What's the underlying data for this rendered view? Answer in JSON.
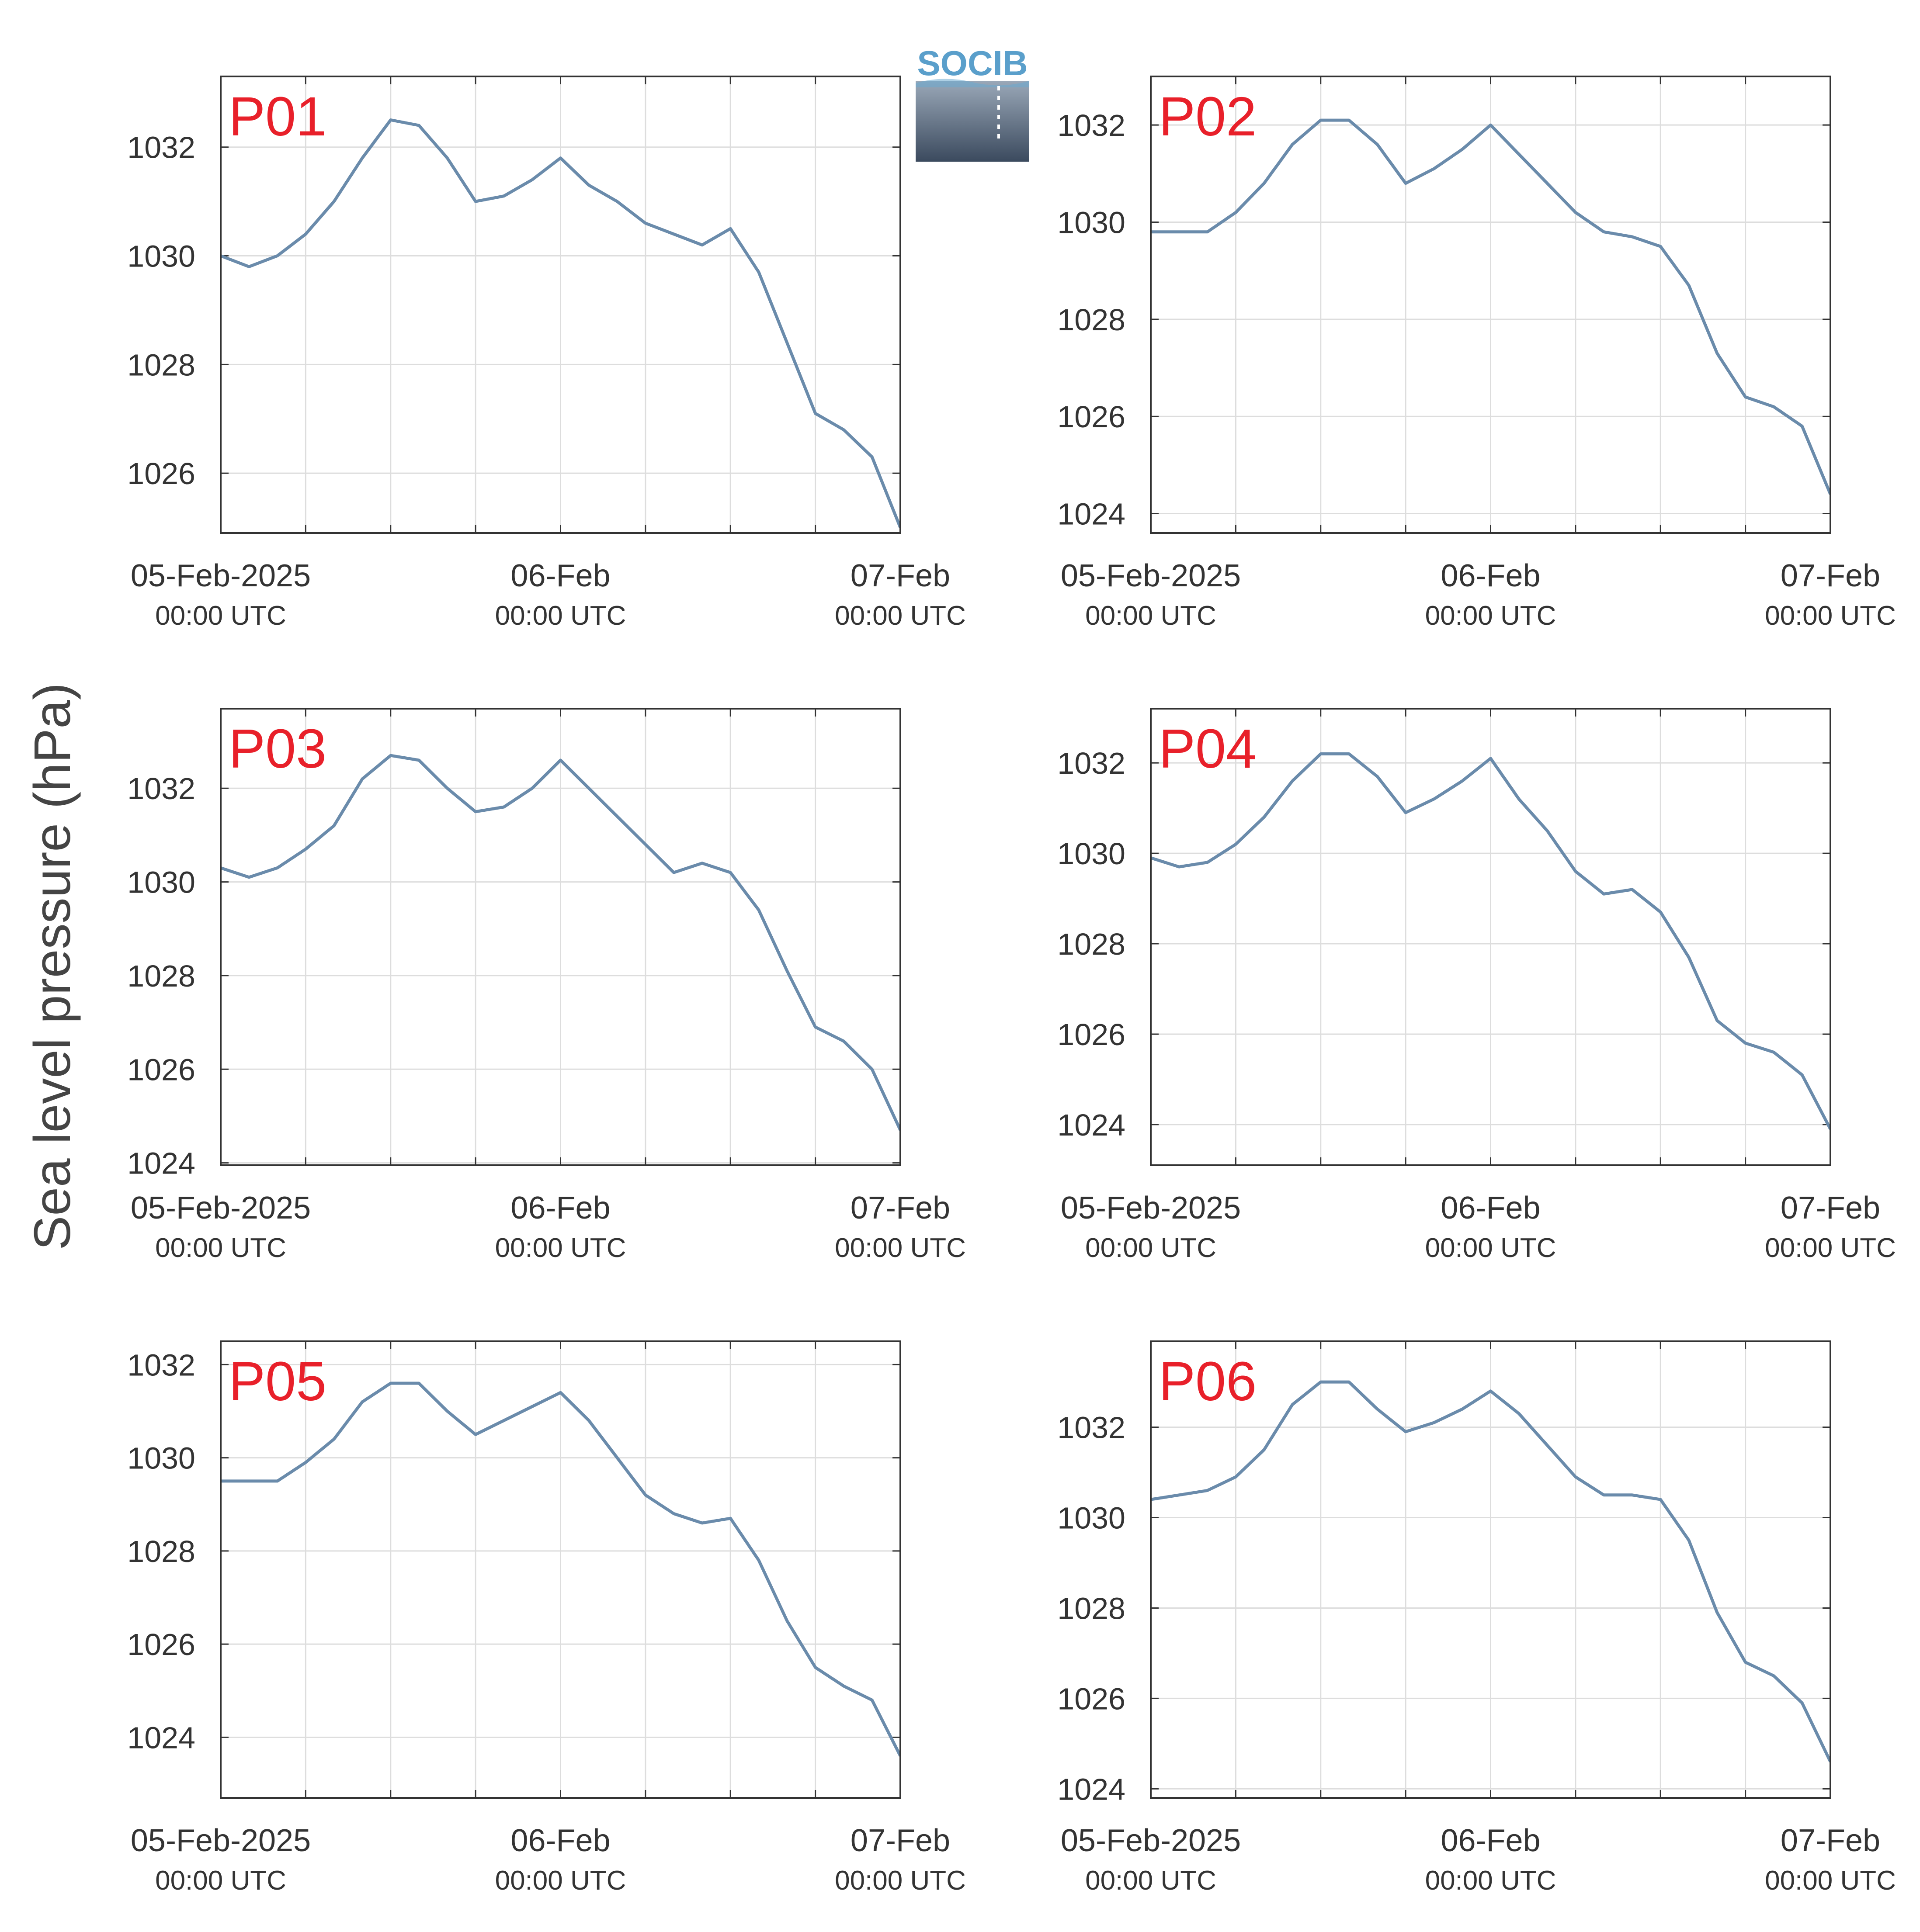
{
  "figure": {
    "ylabel": "Sea level pressure (hPa)",
    "logo_text": "SOCIB"
  },
  "colors": {
    "line": "#6a8bab",
    "panel_label": "#e8202a",
    "grid": "#dddddd",
    "axis": "#333333",
    "logo_text": "#5a9fcb",
    "logo_top": "#9aa8b8",
    "logo_bottom": "#3b4a5e"
  },
  "chart_data": [
    {
      "type": "line",
      "label": "P01",
      "x_range": [
        "2025-02-05 00:00",
        "2025-02-07 00:00"
      ],
      "ylim": [
        1024.9,
        1033.3
      ],
      "yticks": [
        1026,
        1028,
        1030,
        1032
      ],
      "xticks": [
        {
          "label": "05-Feb-2025",
          "sub": "00:00 UTC"
        },
        {
          "label": "06-Feb",
          "sub": "00:00 UTC"
        },
        {
          "label": "07-Feb",
          "sub": "00:00 UTC"
        }
      ],
      "grid": true,
      "x_hours": [
        0,
        2,
        4,
        6,
        8,
        10,
        12,
        14,
        16,
        18,
        20,
        22,
        24,
        26,
        28,
        30,
        32,
        34,
        36,
        38,
        40,
        42,
        44,
        46,
        48
      ],
      "values": [
        1030.0,
        1029.8,
        1030.0,
        1030.4,
        1031.0,
        1031.8,
        1032.5,
        1032.4,
        1031.8,
        1031.0,
        1031.1,
        1031.4,
        1031.8,
        1031.3,
        1031.0,
        1030.6,
        1030.4,
        1030.2,
        1030.5,
        1029.7,
        1028.4,
        1027.1,
        1026.8,
        1026.3,
        1025.0
      ]
    },
    {
      "type": "line",
      "label": "P02",
      "x_range": [
        "2025-02-05 00:00",
        "2025-02-07 00:00"
      ],
      "ylim": [
        1023.6,
        1033.0
      ],
      "yticks": [
        1024,
        1026,
        1028,
        1030,
        1032
      ],
      "xticks": [
        {
          "label": "05-Feb-2025",
          "sub": "00:00 UTC"
        },
        {
          "label": "06-Feb",
          "sub": "00:00 UTC"
        },
        {
          "label": "07-Feb",
          "sub": "00:00 UTC"
        }
      ],
      "grid": true,
      "x_hours": [
        0,
        2,
        4,
        6,
        8,
        10,
        12,
        14,
        16,
        18,
        20,
        22,
        24,
        26,
        28,
        30,
        32,
        34,
        36,
        38,
        40,
        42,
        44,
        46,
        48
      ],
      "values": [
        1029.8,
        1029.8,
        1029.8,
        1030.2,
        1030.8,
        1031.6,
        1032.1,
        1032.1,
        1031.6,
        1030.8,
        1031.1,
        1031.5,
        1032.0,
        1031.4,
        1030.8,
        1030.2,
        1029.8,
        1029.7,
        1029.5,
        1028.7,
        1027.3,
        1026.4,
        1026.2,
        1025.8,
        1024.4
      ]
    },
    {
      "type": "line",
      "label": "P03",
      "x_range": [
        "2025-02-05 00:00",
        "2025-02-07 00:00"
      ],
      "ylim": [
        1023.95,
        1033.7
      ],
      "yticks": [
        1024,
        1026,
        1028,
        1030,
        1032
      ],
      "xticks": [
        {
          "label": "05-Feb-2025",
          "sub": "00:00 UTC"
        },
        {
          "label": "06-Feb",
          "sub": "00:00 UTC"
        },
        {
          "label": "07-Feb",
          "sub": "00:00 UTC"
        }
      ],
      "grid": true,
      "x_hours": [
        0,
        2,
        4,
        6,
        8,
        10,
        12,
        14,
        16,
        18,
        20,
        22,
        24,
        26,
        28,
        30,
        32,
        34,
        36,
        38,
        40,
        42,
        44,
        46,
        48
      ],
      "values": [
        1030.3,
        1030.1,
        1030.3,
        1030.7,
        1031.2,
        1032.2,
        1032.7,
        1032.6,
        1032.0,
        1031.5,
        1031.6,
        1032.0,
        1032.6,
        1032.0,
        1031.4,
        1030.8,
        1030.2,
        1030.4,
        1030.2,
        1029.4,
        1028.1,
        1026.9,
        1026.6,
        1026.0,
        1024.7
      ]
    },
    {
      "type": "line",
      "label": "P04",
      "x_range": [
        "2025-02-05 00:00",
        "2025-02-07 00:00"
      ],
      "ylim": [
        1023.1,
        1033.2
      ],
      "yticks": [
        1024,
        1026,
        1028,
        1030,
        1032
      ],
      "xticks": [
        {
          "label": "05-Feb-2025",
          "sub": "00:00 UTC"
        },
        {
          "label": "06-Feb",
          "sub": "00:00 UTC"
        },
        {
          "label": "07-Feb",
          "sub": "00:00 UTC"
        }
      ],
      "grid": true,
      "x_hours": [
        0,
        2,
        4,
        6,
        8,
        10,
        12,
        14,
        16,
        18,
        20,
        22,
        24,
        26,
        28,
        30,
        32,
        34,
        36,
        38,
        40,
        42,
        44,
        46,
        48
      ],
      "values": [
        1029.9,
        1029.7,
        1029.8,
        1030.2,
        1030.8,
        1031.6,
        1032.2,
        1032.2,
        1031.7,
        1030.9,
        1031.2,
        1031.6,
        1032.1,
        1031.2,
        1030.5,
        1029.6,
        1029.1,
        1029.2,
        1028.7,
        1027.7,
        1026.3,
        1025.8,
        1025.6,
        1025.1,
        1023.9
      ]
    },
    {
      "type": "line",
      "label": "P05",
      "x_range": [
        "2025-02-05 00:00",
        "2025-02-07 00:00"
      ],
      "ylim": [
        1022.7,
        1032.5
      ],
      "yticks": [
        1024,
        1026,
        1028,
        1030,
        1032
      ],
      "xticks": [
        {
          "label": "05-Feb-2025",
          "sub": "00:00 UTC"
        },
        {
          "label": "06-Feb",
          "sub": "00:00 UTC"
        },
        {
          "label": "07-Feb",
          "sub": "00:00 UTC"
        }
      ],
      "grid": true,
      "x_hours": [
        0,
        2,
        4,
        6,
        8,
        10,
        12,
        14,
        16,
        18,
        20,
        22,
        24,
        26,
        28,
        30,
        32,
        34,
        36,
        38,
        40,
        42,
        44,
        46,
        48
      ],
      "values": [
        1029.5,
        1029.5,
        1029.5,
        1029.9,
        1030.4,
        1031.2,
        1031.6,
        1031.6,
        1031.0,
        1030.5,
        1030.8,
        1031.1,
        1031.4,
        1030.8,
        1030.0,
        1029.2,
        1028.8,
        1028.6,
        1028.7,
        1027.8,
        1026.5,
        1025.5,
        1025.1,
        1024.8,
        1023.6
      ]
    },
    {
      "type": "line",
      "label": "P06",
      "x_range": [
        "2025-02-05 00:00",
        "2025-02-07 00:00"
      ],
      "ylim": [
        1023.8,
        1033.9
      ],
      "yticks": [
        1024,
        1026,
        1028,
        1030,
        1032
      ],
      "xticks": [
        {
          "label": "05-Feb-2025",
          "sub": "00:00 UTC"
        },
        {
          "label": "06-Feb",
          "sub": "00:00 UTC"
        },
        {
          "label": "07-Feb",
          "sub": "00:00 UTC"
        }
      ],
      "grid": true,
      "x_hours": [
        0,
        2,
        4,
        6,
        8,
        10,
        12,
        14,
        16,
        18,
        20,
        22,
        24,
        26,
        28,
        30,
        32,
        34,
        36,
        38,
        40,
        42,
        44,
        46,
        48
      ],
      "values": [
        1030.4,
        1030.5,
        1030.6,
        1030.9,
        1031.5,
        1032.5,
        1033.0,
        1033.0,
        1032.4,
        1031.9,
        1032.1,
        1032.4,
        1032.8,
        1032.3,
        1031.6,
        1030.9,
        1030.5,
        1030.5,
        1030.4,
        1029.5,
        1027.9,
        1026.8,
        1026.5,
        1025.9,
        1024.6
      ]
    }
  ]
}
